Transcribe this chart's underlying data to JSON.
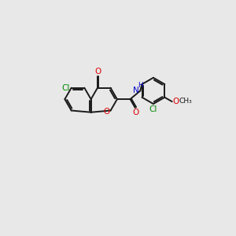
{
  "background_color": "#e8e8e8",
  "bond_color": "#1a1a1a",
  "atom_colors": {
    "O": "#dd0000",
    "N": "#0000cc",
    "Cl": "#008800",
    "C": "#1a1a1a"
  },
  "figsize": [
    3.0,
    3.0
  ],
  "dpi": 100,
  "lw": 1.4,
  "fsize": 7.5
}
